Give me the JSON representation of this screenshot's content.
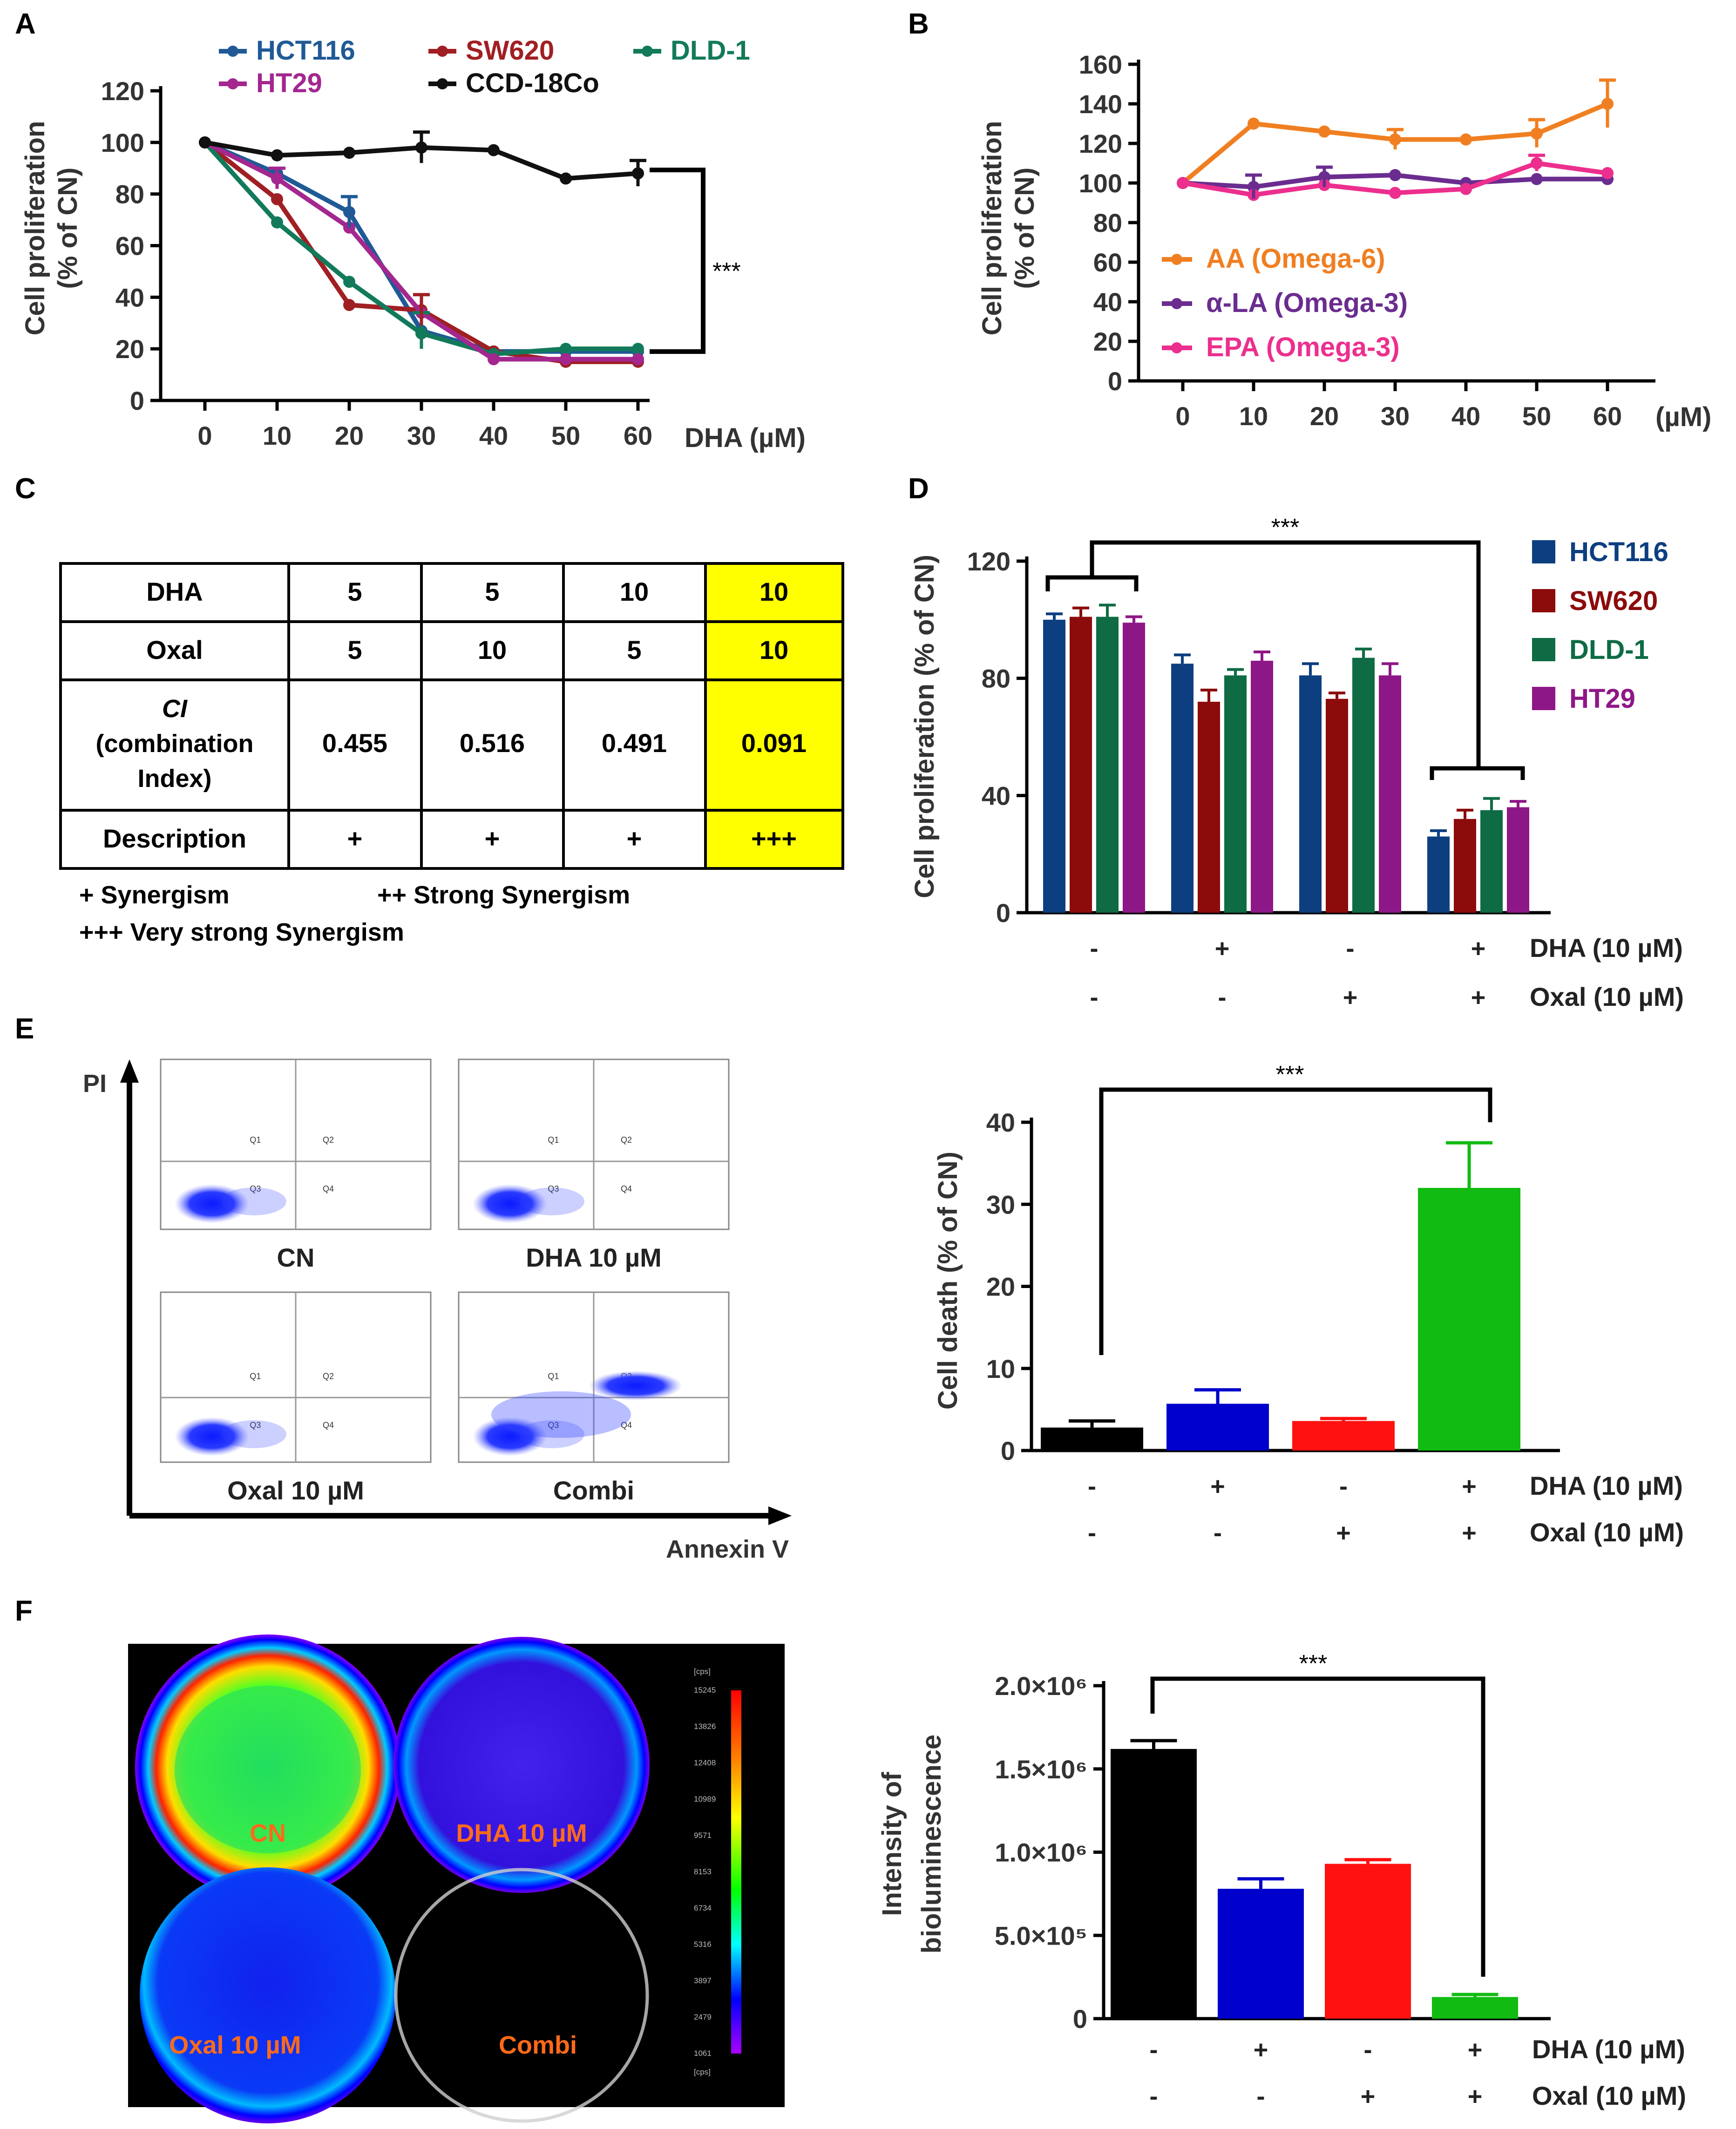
{
  "panels": {
    "a": "A",
    "b": "B",
    "c": "C",
    "d": "D",
    "e": "E",
    "f": "F"
  },
  "chart_data": [
    {
      "id": "A",
      "type": "line",
      "xlabel": "DHA (µM)",
      "ylabel": [
        "Cell proliferation",
        "(% of CN)"
      ],
      "x": [
        0,
        10,
        20,
        30,
        40,
        50,
        60
      ],
      "ylim": [
        0,
        120
      ],
      "yticks": [
        0,
        20,
        40,
        60,
        80,
        100,
        120
      ],
      "series": [
        {
          "name": "HCT116",
          "color": "#1f5a96",
          "values": [
            100,
            88,
            73,
            27,
            19,
            19,
            19
          ]
        },
        {
          "name": "SW620",
          "color": "#a01f23",
          "values": [
            100,
            78,
            37,
            35,
            19,
            15,
            15
          ]
        },
        {
          "name": "DLD-1",
          "color": "#127a5b",
          "values": [
            100,
            69,
            46,
            26,
            18,
            20,
            20
          ]
        },
        {
          "name": "HT29",
          "color": "#a3278f",
          "values": [
            100,
            86,
            67,
            34,
            16,
            16,
            16
          ]
        },
        {
          "name": "CCD-18Co",
          "color": "#111111",
          "values": [
            100,
            95,
            96,
            98,
            97,
            86,
            88
          ]
        }
      ],
      "annotation": "***"
    },
    {
      "id": "B",
      "type": "line",
      "xlabel": "(µM)",
      "ylabel": [
        "Cell proliferation",
        "(% of CN)"
      ],
      "x": [
        0,
        10,
        20,
        30,
        40,
        50,
        60
      ],
      "ylim": [
        0,
        160
      ],
      "yticks": [
        0,
        20,
        40,
        60,
        80,
        100,
        120,
        140,
        160
      ],
      "series": [
        {
          "name": "AA (Omega-6)",
          "color": "#f07f21",
          "values": [
            100,
            130,
            126,
            122,
            122,
            125,
            140
          ]
        },
        {
          "name": "α-LA (Omega-3)",
          "color": "#6a2d8f",
          "values": [
            100,
            98,
            103,
            104,
            100,
            102,
            102
          ]
        },
        {
          "name": "EPA (Omega-3)",
          "color": "#ec2f8e",
          "values": [
            100,
            94,
            99,
            95,
            97,
            110,
            105
          ]
        }
      ]
    },
    {
      "id": "D",
      "type": "bar",
      "ylabel": "Cell proliferation (% of CN)",
      "ylim": [
        0,
        120
      ],
      "yticks": [
        0,
        40,
        80,
        120
      ],
      "series": [
        {
          "name": "HCT116",
          "color": "#0d3f80",
          "values": [
            100,
            85,
            81,
            26
          ]
        },
        {
          "name": "SW620",
          "color": "#8c0b0b",
          "values": [
            101,
            72,
            73,
            32
          ]
        },
        {
          "name": "DLD-1",
          "color": "#0e6b44",
          "values": [
            101,
            81,
            87,
            35
          ]
        },
        {
          "name": "HT29",
          "color": "#8e1787",
          "values": [
            99,
            86,
            81,
            36
          ]
        }
      ],
      "conditions": {
        "dha": [
          "-",
          "+",
          "-",
          "+"
        ],
        "oxal": [
          "-",
          "-",
          "+",
          "+"
        ]
      },
      "cond_labels": [
        "DHA (10 µM)",
        "Oxal (10 µM)"
      ],
      "annotation": "***"
    },
    {
      "id": "E",
      "type": "bar",
      "ylabel": "Cell death (% of CN)",
      "ylim": [
        0,
        40
      ],
      "yticks": [
        0,
        10,
        20,
        30,
        40
      ],
      "values": [
        2.8,
        5.7,
        3.6,
        32
      ],
      "colors": [
        "#000000",
        "#0000cc",
        "#ff1111",
        "#11bb11"
      ],
      "conditions": {
        "dha": [
          "-",
          "+",
          "-",
          "+"
        ],
        "oxal": [
          "-",
          "-",
          "+",
          "+"
        ]
      },
      "cond_labels": [
        "DHA (10 µM)",
        "Oxal (10 µM)"
      ],
      "annotation": "***"
    },
    {
      "id": "F",
      "type": "bar",
      "ylabel": [
        "Intensity of",
        "bioluminescence"
      ],
      "ylim": [
        0,
        2000000
      ],
      "yticks": [
        0,
        500000,
        1000000,
        1500000,
        2000000
      ],
      "ytick_labels": [
        "0",
        "5.0×10⁵",
        "1.0×10⁶",
        "1.5×10⁶",
        "2.0×10⁶"
      ],
      "values": [
        1620000,
        780000,
        930000,
        130000
      ],
      "colors": [
        "#000000",
        "#0000cc",
        "#ff1111",
        "#11bb11"
      ],
      "conditions": {
        "dha": [
          "-",
          "+",
          "-",
          "+"
        ],
        "oxal": [
          "-",
          "-",
          "+",
          "+"
        ]
      },
      "cond_labels": [
        "DHA (10 µM)",
        "Oxal (10 µM)"
      ],
      "annotation": "***"
    }
  ],
  "table_c": {
    "rows": [
      {
        "head": "DHA",
        "cells": [
          "5",
          "5",
          "10",
          "10"
        ]
      },
      {
        "head": "Oxal",
        "cells": [
          "5",
          "10",
          "5",
          "10"
        ]
      },
      {
        "head_lines": [
          "CI",
          "(combination",
          "Index)"
        ],
        "cells": [
          "0.455",
          "0.516",
          "0.491",
          "0.091"
        ]
      },
      {
        "head": "Description",
        "cells": [
          "+",
          "+",
          "+",
          "+++"
        ]
      }
    ],
    "highlight_color": "#ffff00",
    "legend": [
      "+ Synergism",
      "++ Strong Synergism",
      "+++ Very strong Synergism"
    ]
  },
  "flow_e": {
    "y_axis": "PI",
    "x_axis": "Annexin V",
    "quadrants": [
      "Q1",
      "Q2",
      "Q3",
      "Q4"
    ],
    "plots": [
      "CN",
      "DHA  10 µM",
      "Oxal 10 µM",
      "Combi"
    ]
  },
  "image_f": {
    "wells": [
      "CN",
      "DHA  10 µM",
      "Oxal 10 µM",
      "Combi"
    ],
    "unit": "[cps]",
    "scale": [
      "15245",
      "13826",
      "12408",
      "10989",
      "9571",
      "8153",
      "6734",
      "5316",
      "3897",
      "2479",
      "1061"
    ]
  }
}
